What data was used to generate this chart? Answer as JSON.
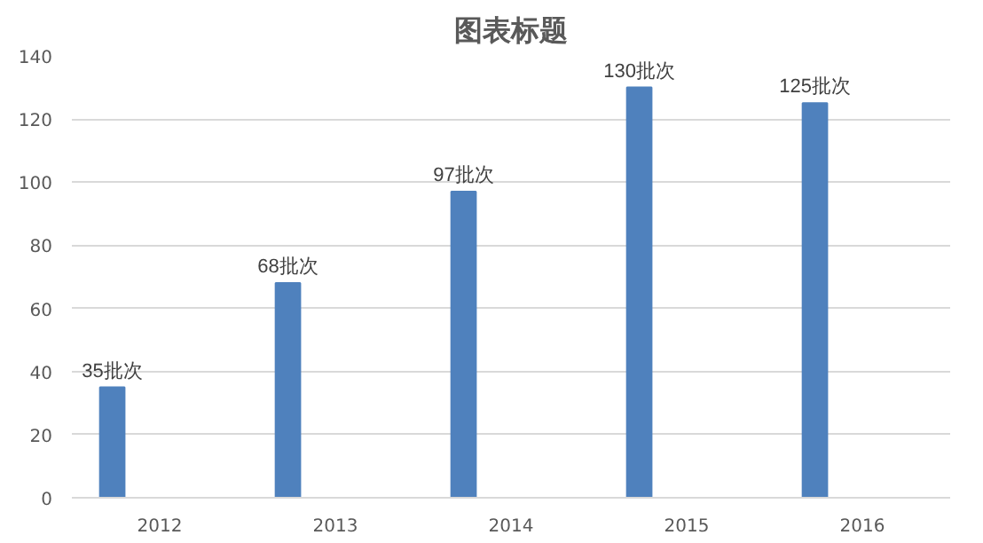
{
  "chart_data": {
    "type": "bar",
    "title": "图表标题",
    "categories": [
      "2012",
      "2013",
      "2014",
      "2015",
      "2016"
    ],
    "values": [
      35,
      68,
      97,
      130,
      125
    ],
    "value_labels": [
      "35批次",
      "68批次",
      "97批次",
      "130批次",
      "125批次"
    ],
    "color": "#4f81bd",
    "ylim": [
      0,
      140
    ],
    "yticks": [
      0,
      20,
      40,
      60,
      80,
      100,
      120,
      140
    ],
    "grid": "y"
  }
}
